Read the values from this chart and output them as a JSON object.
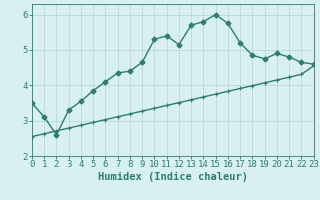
{
  "line1_x": [
    0,
    1,
    2,
    3,
    4,
    5,
    6,
    7,
    8,
    9,
    10,
    11,
    12,
    13,
    14,
    15,
    16,
    17,
    18,
    19,
    20,
    21,
    22,
    23
  ],
  "line1_y": [
    3.5,
    3.1,
    2.6,
    3.3,
    3.55,
    3.85,
    4.1,
    4.35,
    4.4,
    4.65,
    5.3,
    5.4,
    5.15,
    5.7,
    5.8,
    6.0,
    5.75,
    5.2,
    4.85,
    4.75,
    4.9,
    4.8,
    4.65,
    4.6
  ],
  "line2_x": [
    0,
    1,
    2,
    3,
    4,
    5,
    6,
    7,
    8,
    9,
    10,
    11,
    12,
    13,
    14,
    15,
    16,
    17,
    18,
    19,
    20,
    21,
    22,
    23
  ],
  "line2_y": [
    2.55,
    2.63,
    2.71,
    2.79,
    2.87,
    2.95,
    3.03,
    3.11,
    3.19,
    3.27,
    3.35,
    3.43,
    3.51,
    3.59,
    3.67,
    3.75,
    3.83,
    3.91,
    3.99,
    4.07,
    4.15,
    4.23,
    4.31,
    4.55
  ],
  "line_color": "#2e7d6e",
  "bg_color": "#d8f0ef",
  "grid_color": "#b8dbd8",
  "xlabel": "Humidex (Indice chaleur)",
  "xlim": [
    0,
    23
  ],
  "ylim": [
    2.0,
    6.3
  ],
  "yticks": [
    2,
    3,
    4,
    5,
    6
  ],
  "xticks": [
    0,
    1,
    2,
    3,
    4,
    5,
    6,
    7,
    8,
    9,
    10,
    11,
    12,
    13,
    14,
    15,
    16,
    17,
    18,
    19,
    20,
    21,
    22,
    23
  ],
  "xtick_labels": [
    "0",
    "1",
    "2",
    "3",
    "4",
    "5",
    "6",
    "7",
    "8",
    "9",
    "10",
    "11",
    "12",
    "13",
    "14",
    "15",
    "16",
    "17",
    "18",
    "19",
    "20",
    "21",
    "22",
    "23"
  ],
  "marker1": "D",
  "marker2": "+",
  "marker_size1": 2.5,
  "marker_size2": 3.0,
  "line_width": 1.0,
  "tick_fontsize": 6.5,
  "label_fontsize": 7.5
}
